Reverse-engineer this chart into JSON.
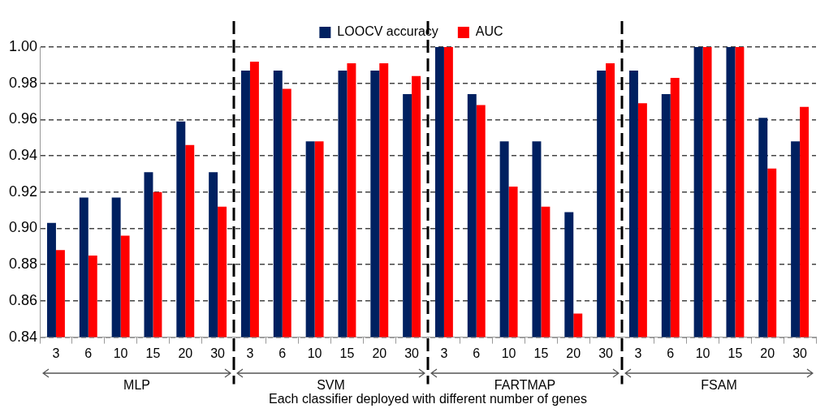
{
  "chart_data": {
    "type": "bar",
    "xlabel": "Each classifier deployed with different number of genes",
    "categories": [
      "3",
      "6",
      "10",
      "15",
      "20",
      "30",
      "3",
      "6",
      "10",
      "15",
      "20",
      "30",
      "3",
      "6",
      "10",
      "15",
      "20",
      "30",
      "3",
      "6",
      "10",
      "15",
      "20",
      "30"
    ],
    "series": [
      {
        "name": "LOOCV accuracy",
        "color": "#002060",
        "values": [
          0.903,
          0.917,
          0.917,
          0.931,
          0.959,
          0.931,
          0.987,
          0.987,
          0.948,
          0.987,
          0.987,
          0.974,
          1.0,
          0.974,
          0.948,
          0.948,
          0.909,
          0.987,
          0.987,
          0.974,
          1.0,
          1.0,
          0.961,
          0.948
        ]
      },
      {
        "name": "AUC",
        "color": "#ff0000",
        "values": [
          0.888,
          0.885,
          0.896,
          0.92,
          0.946,
          0.912,
          0.992,
          0.977,
          0.948,
          0.991,
          0.991,
          0.984,
          1.0,
          0.968,
          0.923,
          0.912,
          0.853,
          0.991,
          0.969,
          0.983,
          1.0,
          1.0,
          0.933,
          0.967
        ]
      }
    ],
    "ylim": [
      0.84,
      1.0
    ],
    "yticks": [
      {
        "value": 0.84,
        "label": "0.84"
      },
      {
        "value": 0.86,
        "label": "0.86"
      },
      {
        "value": 0.88,
        "label": "0.88"
      },
      {
        "value": 0.9,
        "label": "0.90"
      },
      {
        "value": 0.92,
        "label": "0.92"
      },
      {
        "value": 0.94,
        "label": "0.94"
      },
      {
        "value": 0.96,
        "label": "0.96"
      },
      {
        "value": 0.98,
        "label": "0.98"
      },
      {
        "value": 1.0,
        "label": "1.00"
      }
    ],
    "annotations": [
      "MLP",
      "SVM",
      "FARTMAP",
      "FSAM"
    ],
    "grid": "y",
    "legend": "top"
  }
}
